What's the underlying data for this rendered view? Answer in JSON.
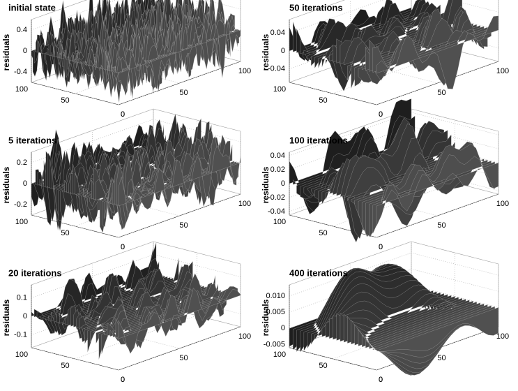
{
  "chart_data": [
    {
      "type": "surface",
      "title": "initial state",
      "zlabel": "residuals",
      "xlim": [
        0,
        100
      ],
      "ylim": [
        0,
        100
      ],
      "zlim": [
        -0.6,
        0.6
      ],
      "xticks": [
        0,
        50,
        100
      ],
      "yticks": [
        0,
        50,
        100
      ],
      "zticks": [
        -0.4,
        0,
        0.4
      ],
      "grid": true
    },
    {
      "type": "surface",
      "title": "50 iterations",
      "zlabel": "residuals",
      "xlim": [
        0,
        100
      ],
      "ylim": [
        0,
        100
      ],
      "zlim": [
        -0.07,
        0.07
      ],
      "xticks": [
        0,
        50,
        100
      ],
      "yticks": [
        0,
        50,
        100
      ],
      "zticks": [
        -0.04,
        0,
        0.04
      ],
      "grid": true
    },
    {
      "type": "surface",
      "title": "5 iterations",
      "zlabel": "residuals",
      "xlim": [
        0,
        100
      ],
      "ylim": [
        0,
        100
      ],
      "zlim": [
        -0.3,
        0.3
      ],
      "xticks": [
        0,
        50,
        100
      ],
      "yticks": [
        0,
        50,
        100
      ],
      "zticks": [
        -0.2,
        0,
        0.2
      ],
      "grid": true
    },
    {
      "type": "surface",
      "title": "100 iterations",
      "zlabel": "residuals",
      "xlim": [
        0,
        100
      ],
      "ylim": [
        0,
        100
      ],
      "zlim": [
        -0.045,
        0.045
      ],
      "xticks": [
        0,
        50,
        100
      ],
      "yticks": [
        0,
        50,
        100
      ],
      "zticks": [
        -0.04,
        -0.02,
        0,
        0.02,
        0.04
      ],
      "grid": true
    },
    {
      "type": "surface",
      "title": "20 iterations",
      "zlabel": "residuals",
      "xlim": [
        0,
        100
      ],
      "ylim": [
        0,
        100
      ],
      "zlim": [
        -0.17,
        0.17
      ],
      "xticks": [
        0,
        50,
        100
      ],
      "yticks": [
        0,
        50,
        100
      ],
      "zticks": [
        -0.1,
        0,
        0.1
      ],
      "grid": true
    },
    {
      "type": "surface",
      "title": "400 iterations",
      "zlabel": "residuals",
      "xlim": [
        0,
        100
      ],
      "ylim": [
        0,
        100
      ],
      "zlim": [
        -0.006,
        0.0135
      ],
      "xticks": [
        0,
        50,
        100
      ],
      "yticks": [
        0,
        50,
        100
      ],
      "zticks": [
        -0.005,
        0,
        0.005,
        {
          "value": 0.01,
          "label": "0.010"
        }
      ],
      "grid": true
    }
  ]
}
